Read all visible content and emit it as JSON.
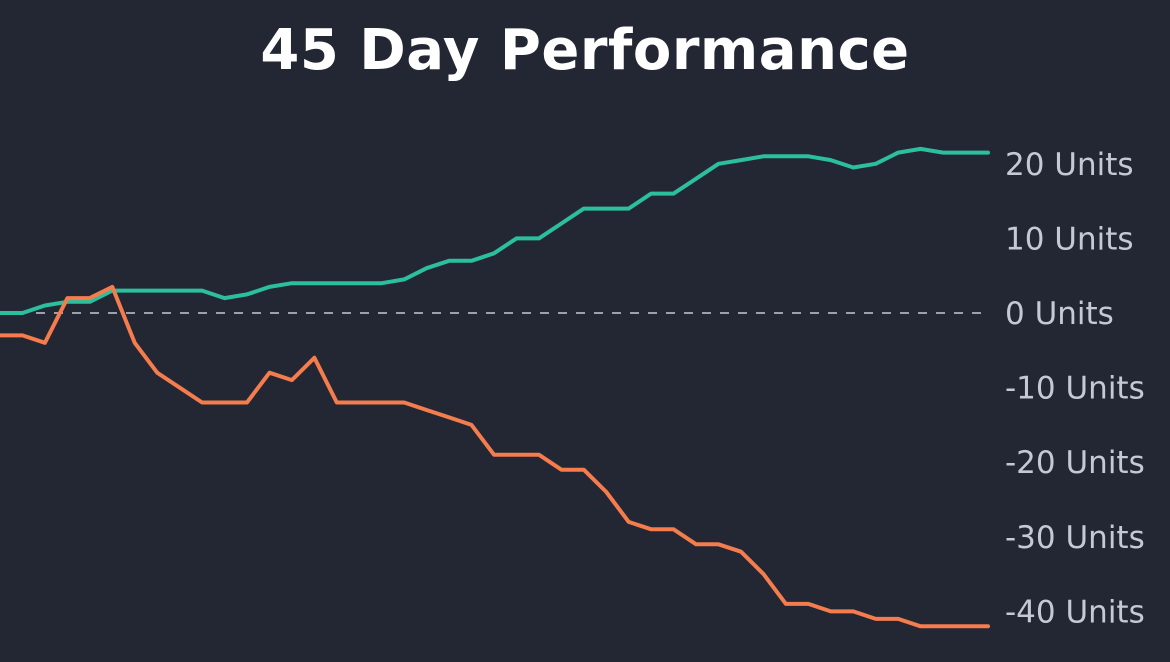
{
  "chart_data": {
    "type": "line",
    "title": "45 Day Performance",
    "xlabel": "",
    "ylabel": "",
    "y_axis_position": "right",
    "ylim": [
      -42,
      22
    ],
    "yticks": [
      20,
      10,
      0,
      -10,
      -20,
      -30,
      -40
    ],
    "ytick_labels": [
      "20 Units",
      "10 Units",
      "0 Units",
      "-10 Units",
      "-20 Units",
      "-30 Units",
      "-40 Units"
    ],
    "zero_line": "dashed",
    "grid": false,
    "legend": "none",
    "x": [
      1,
      2,
      3,
      4,
      5,
      6,
      7,
      8,
      9,
      10,
      11,
      12,
      13,
      14,
      15,
      16,
      17,
      18,
      19,
      20,
      21,
      22,
      23,
      24,
      25,
      26,
      27,
      28,
      29,
      30,
      31,
      32,
      33,
      34,
      35,
      36,
      37,
      38,
      39,
      40,
      41,
      42,
      43,
      44,
      45
    ],
    "series": [
      {
        "color": "#2bbf9e",
        "values": [
          0,
          0,
          1,
          1.5,
          1.5,
          3,
          3,
          3,
          3,
          3,
          2,
          2.5,
          3.5,
          4,
          4,
          4,
          4,
          4,
          4.5,
          6,
          7,
          7,
          8,
          10,
          10,
          12,
          14,
          14,
          14,
          16,
          16,
          18,
          20,
          20.5,
          21,
          21,
          21,
          20.5,
          19.5,
          20,
          21.5,
          22,
          21.5,
          21.5,
          21.5
        ]
      },
      {
        "color": "#f47c4d",
        "values": [
          -3,
          -3,
          -4,
          2,
          2,
          3.5,
          -4,
          -8,
          -10,
          -12,
          -12,
          -12,
          -8,
          -9,
          -6,
          -12,
          -12,
          -12,
          -12,
          -13,
          -14,
          -15,
          -19,
          -19,
          -19,
          -21,
          -21,
          -24,
          -28,
          -29,
          -29,
          -31,
          -31,
          -32,
          -35,
          -39,
          -39,
          -40,
          -40,
          -41,
          -41,
          -42,
          -42,
          -42,
          -42
        ]
      }
    ]
  }
}
